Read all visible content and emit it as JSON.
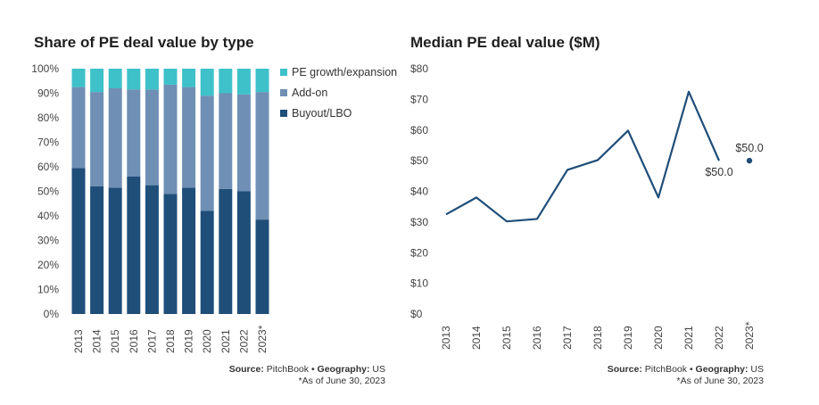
{
  "left": {
    "title": "Share of PE deal value by type",
    "source_label": "Source:",
    "source_value": "PitchBook",
    "separator": "•",
    "geo_label": "Geography:",
    "geo_value": "US",
    "footnote": "*As of June 30, 2023"
  },
  "right": {
    "title": "Median PE deal value ($M)",
    "source_label": "Source:",
    "source_value": "PitchBook",
    "separator": "•",
    "geo_label": "Geography:",
    "geo_value": "US",
    "footnote": "*As of June 30, 2023"
  },
  "chart_data": [
    {
      "type": "bar",
      "stacked": true,
      "title": "Share of PE deal value by type",
      "categories": [
        "2013",
        "2014",
        "2015",
        "2016",
        "2017",
        "2018",
        "2019",
        "2020",
        "2021",
        "2022",
        "2023*"
      ],
      "series": [
        {
          "name": "Buyout/LBO",
          "color": "#1f4e79",
          "values": [
            59.5,
            52,
            51.5,
            56,
            52.5,
            49,
            51.5,
            42,
            51,
            50,
            38.5
          ]
        },
        {
          "name": "Add-on",
          "color": "#6f8fb5",
          "values": [
            33,
            38.5,
            40.5,
            35.5,
            39,
            44.5,
            41,
            47,
            39,
            39.5,
            52
          ]
        },
        {
          "name": "PE growth/expansion",
          "color": "#3ec1c9",
          "values": [
            7.5,
            9.5,
            8,
            8.5,
            8.5,
            6.5,
            7.5,
            11,
            10,
            10.5,
            9.5
          ]
        }
      ],
      "ylim": [
        0,
        100
      ],
      "yticks": [
        "0%",
        "10%",
        "20%",
        "30%",
        "40%",
        "50%",
        "60%",
        "70%",
        "80%",
        "90%",
        "100%"
      ],
      "legend_position": "right",
      "legend_order": [
        "PE growth/expansion",
        "Add-on",
        "Buyout/LBO"
      ]
    },
    {
      "type": "line",
      "title": "Median PE deal value ($M)",
      "categories": [
        "2013",
        "2014",
        "2015",
        "2016",
        "2017",
        "2018",
        "2019",
        "2020",
        "2021",
        "2022",
        "2023*"
      ],
      "series": [
        {
          "color": "#1f4e79",
          "values": [
            32.5,
            38,
            30.2,
            31,
            47,
            50.2,
            59.8,
            38,
            72.5,
            50,
            null
          ]
        },
        {
          "color": "#1f4e79",
          "marker": "dot",
          "values": [
            null,
            null,
            null,
            null,
            null,
            null,
            null,
            null,
            null,
            null,
            50
          ]
        }
      ],
      "ylim": [
        0,
        80
      ],
      "yticks": [
        "$0",
        "$10",
        "$20",
        "$30",
        "$40",
        "$50",
        "$60",
        "$70",
        "$80"
      ],
      "annotations": [
        {
          "category": "2022",
          "label": "$50.0"
        },
        {
          "category": "2023*",
          "label": "$50.0"
        }
      ]
    }
  ]
}
